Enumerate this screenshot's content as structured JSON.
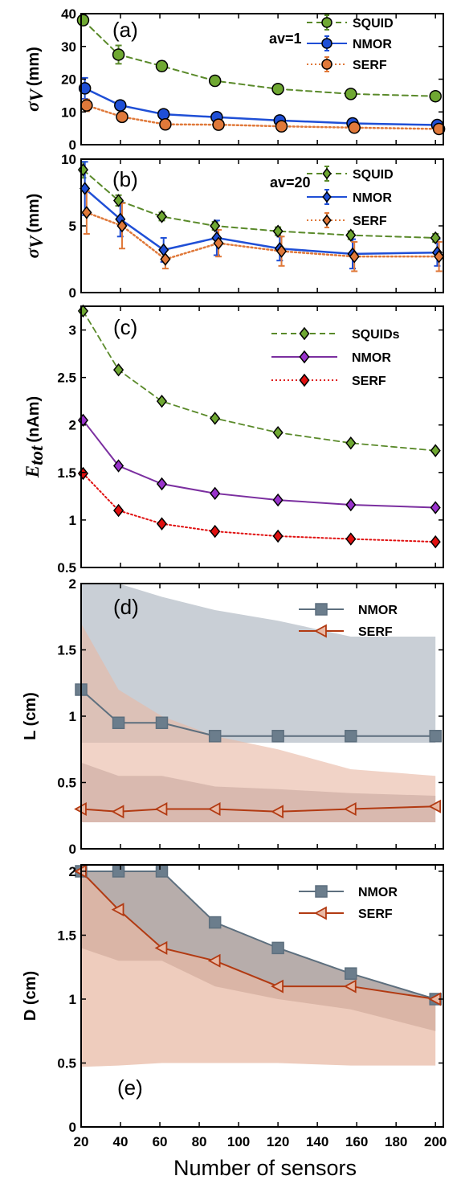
{
  "xlabel": "Number of sensors",
  "xticks": [
    20,
    40,
    60,
    80,
    100,
    120,
    140,
    160,
    180,
    200
  ],
  "colors": {
    "squid": "#5a8a2a",
    "squid_fill": "#6fa832",
    "nmor_blue": "#1f4fd6",
    "serf_orange": "#e0793a",
    "nmor_purple": "#7b2fa0",
    "nmor_fill_purple": "#9933cc",
    "serf_red": "#e01010",
    "nmor_gray": "#5d6f7e",
    "nmor_gray_marker": "#6b7d8c",
    "serf_brown": "#b23a12",
    "band_gray": "#c9cfd6",
    "band_orange": "#e8b8a4",
    "band_overlap": "#c4a49a"
  },
  "chart_data": [
    {
      "panel": "(a)",
      "type": "line",
      "annotation": "av=1",
      "ylabel_main": "σ",
      "ylabel_sub": "V",
      "ylabel_unit": "(mm)",
      "ylim": [
        0,
        40
      ],
      "yticks": [
        0,
        10,
        20,
        30,
        40
      ],
      "x": [
        21,
        39,
        61,
        88,
        120,
        157,
        200
      ],
      "series": [
        {
          "name": "SQUID",
          "values": [
            38,
            27.5,
            24,
            19.5,
            17,
            15.5,
            14.8
          ],
          "err": [
            1.5,
            2.8,
            1.5,
            0.8,
            0.8,
            0.8,
            0.8
          ],
          "marker": "circle",
          "style": "dashed"
        },
        {
          "name": "NMOR",
          "values": [
            17.2,
            12,
            9.3,
            8.4,
            7.4,
            6.5,
            6
          ],
          "err": [
            3.2,
            1.3,
            0.8,
            0.6,
            0.6,
            0.6,
            0.5
          ],
          "marker": "circle",
          "style": "solid"
        },
        {
          "name": "SERF",
          "values": [
            12,
            8.5,
            6.2,
            6.1,
            5.6,
            5.2,
            4.8
          ],
          "err": [
            1.8,
            0.8,
            0.7,
            0.6,
            0.6,
            0.6,
            0.6
          ],
          "marker": "circle",
          "style": "dotted"
        }
      ]
    },
    {
      "panel": "(b)",
      "type": "line",
      "annotation": "av=20",
      "ylabel_main": "σ",
      "ylabel_sub": "V",
      "ylabel_unit": "(mm)",
      "ylim": [
        0,
        10
      ],
      "yticks": [
        0,
        5,
        10
      ],
      "x": [
        21,
        39,
        61,
        88,
        120,
        157,
        200
      ],
      "series": [
        {
          "name": "SQUID",
          "values": [
            9.2,
            6.9,
            5.7,
            5,
            4.6,
            4.3,
            4.1
          ],
          "err": [
            0.6,
            0.4,
            0.3,
            0.3,
            0.3,
            0.3,
            0.3
          ],
          "marker": "diamond",
          "style": "dashed"
        },
        {
          "name": "NMOR",
          "values": [
            7.8,
            5.5,
            3.2,
            4.1,
            3.3,
            2.9,
            3
          ],
          "err": [
            2,
            1.3,
            0.9,
            1.3,
            0.9,
            1.1,
            1
          ],
          "marker": "diamond",
          "style": "solid"
        },
        {
          "name": "SERF",
          "values": [
            6,
            5,
            2.5,
            3.7,
            3.1,
            2.7,
            2.7
          ],
          "err": [
            1.6,
            1.7,
            0.7,
            1,
            1.1,
            1.1,
            1.1
          ],
          "marker": "diamond",
          "style": "dotted"
        }
      ]
    },
    {
      "panel": "(c)",
      "type": "line",
      "ylabel_main": "E",
      "ylabel_sub": "tot",
      "ylabel_unit": "(nAm)",
      "ylim": [
        0.5,
        3.25
      ],
      "yticks": [
        0.5,
        1,
        1.5,
        2,
        2.5,
        3
      ],
      "x": [
        21,
        39,
        61,
        88,
        120,
        157,
        200
      ],
      "series": [
        {
          "name": "SQUIDs",
          "values": [
            3.2,
            2.58,
            2.25,
            2.07,
            1.92,
            1.81,
            1.73
          ],
          "marker": "diamond",
          "style": "dashed"
        },
        {
          "name": "NMOR",
          "values": [
            2.05,
            1.57,
            1.38,
            1.28,
            1.21,
            1.16,
            1.13
          ],
          "marker": "diamond",
          "style": "solid"
        },
        {
          "name": "SERF",
          "values": [
            1.49,
            1.1,
            0.96,
            0.88,
            0.83,
            0.8,
            0.77
          ],
          "marker": "diamond",
          "style": "dotted"
        }
      ]
    },
    {
      "panel": "(d)",
      "type": "line",
      "ylabel": "L (cm)",
      "ylim": [
        0,
        2
      ],
      "yticks": [
        0,
        0.5,
        1,
        1.5,
        2
      ],
      "x": [
        20,
        39,
        61,
        88,
        120,
        157,
        200
      ],
      "bands": [
        {
          "name": "NMOR range",
          "upper": [
            2,
            2,
            1.9,
            1.8,
            1.72,
            1.6,
            1.6
          ],
          "lower": [
            0.8,
            0.8,
            0.8,
            0.8,
            0.8,
            0.8,
            0.8
          ]
        },
        {
          "name": "SERF range",
          "upper": [
            1.7,
            1.2,
            1.0,
            0.85,
            0.75,
            0.6,
            0.55
          ],
          "lower": [
            0.2,
            0.2,
            0.2,
            0.2,
            0.2,
            0.2,
            0.2
          ]
        },
        {
          "name": "SERF inner",
          "upper": [
            0.65,
            0.55,
            0.55,
            0.47,
            0.45,
            0.42,
            0.4
          ],
          "lower": [
            0.2,
            0.2,
            0.2,
            0.2,
            0.2,
            0.2,
            0.2
          ]
        }
      ],
      "series": [
        {
          "name": "NMOR",
          "values": [
            1.2,
            0.95,
            0.95,
            0.85,
            0.85,
            0.85,
            0.85
          ],
          "marker": "square"
        },
        {
          "name": "SERF",
          "values": [
            0.3,
            0.28,
            0.3,
            0.3,
            0.28,
            0.3,
            0.32
          ],
          "marker": "triangle-left"
        }
      ]
    },
    {
      "panel": "(e)",
      "type": "line",
      "ylabel": "D (cm)",
      "ylim": [
        0,
        2.05
      ],
      "yticks": [
        0,
        0.5,
        1,
        1.5,
        2
      ],
      "x": [
        20,
        39,
        61,
        88,
        120,
        157,
        200
      ],
      "bands": [
        {
          "name": "NMOR range",
          "upper": [
            2,
            2,
            2,
            1.6,
            1.4,
            1.2,
            1
          ],
          "lower": [
            1.4,
            1.3,
            1.3,
            1.1,
            1.0,
            0.92,
            0.75
          ]
        },
        {
          "name": "SERF range",
          "upper": [
            2,
            1.7,
            1.4,
            1.3,
            1.1,
            1.1,
            1.0
          ],
          "lower": [
            0.47,
            0.48,
            0.5,
            0.5,
            0.5,
            0.48,
            0.48
          ]
        }
      ],
      "series": [
        {
          "name": "NMOR",
          "values": [
            2,
            2,
            2,
            1.6,
            1.4,
            1.2,
            1
          ],
          "marker": "square"
        },
        {
          "name": "SERF",
          "values": [
            2,
            1.7,
            1.4,
            1.3,
            1.1,
            1.1,
            1
          ],
          "marker": "triangle-left"
        }
      ]
    }
  ]
}
